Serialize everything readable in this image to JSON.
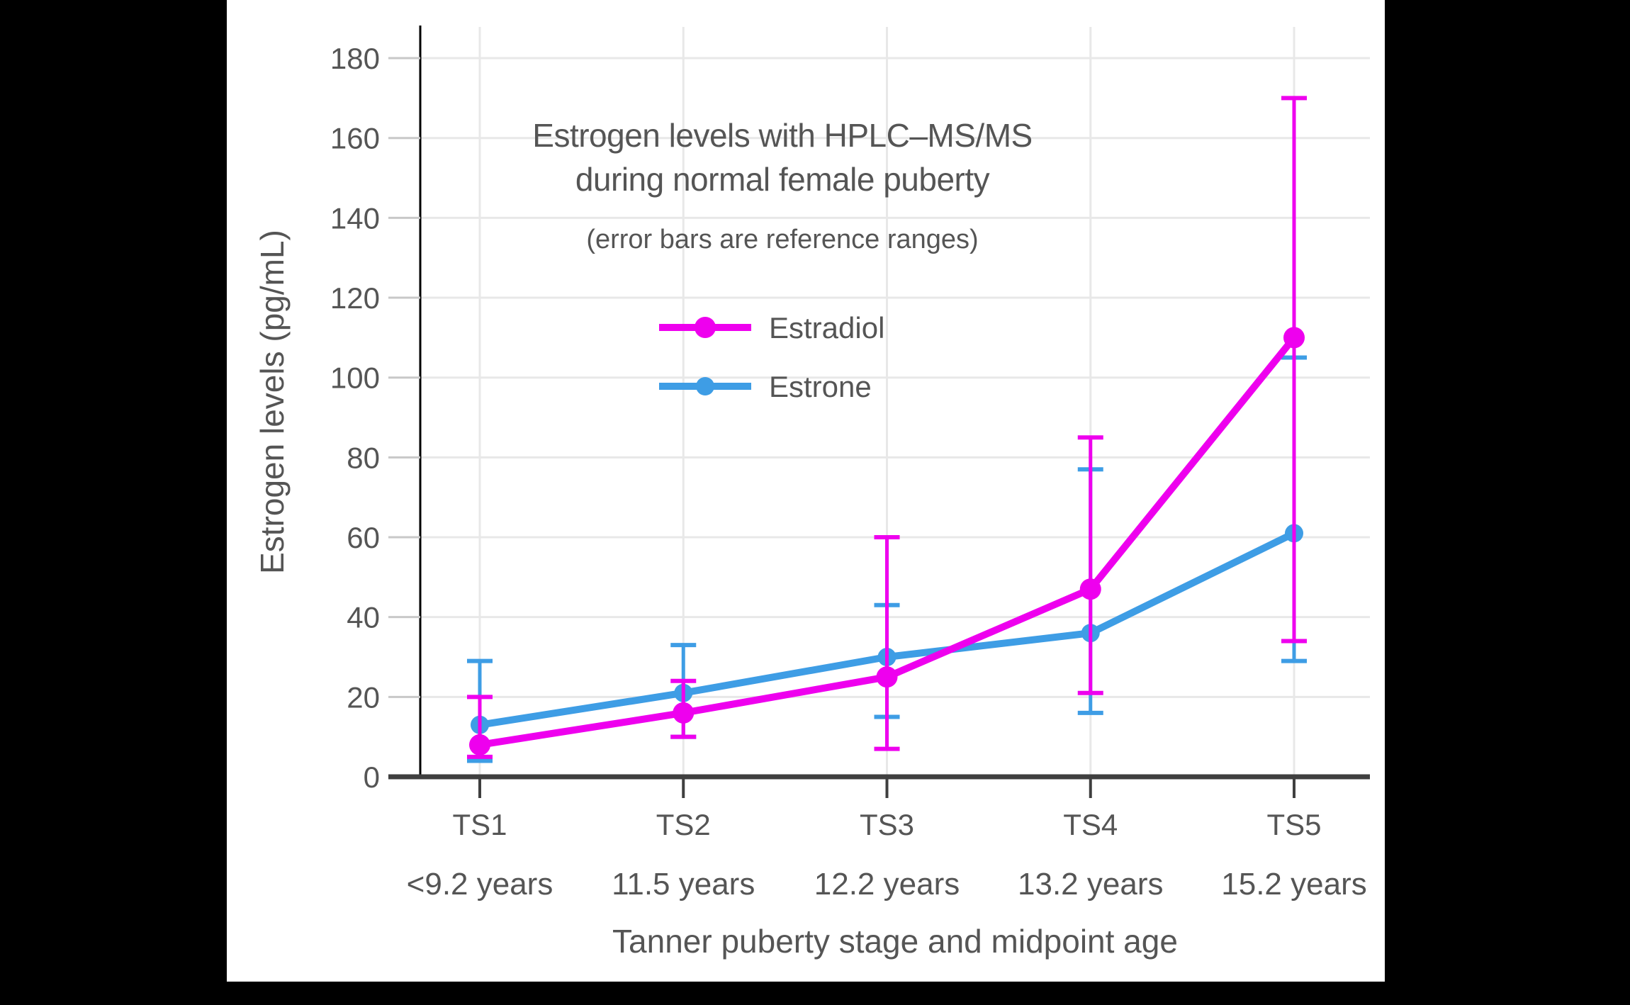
{
  "colors": {
    "letterbox": "#000000",
    "panel": "#ffffff",
    "text": "#555555",
    "gridline": "#e8e8e8",
    "y_axis_line": "#000000",
    "x_axis_line": "#3f3f3f",
    "y_tick": "#c8c8c8",
    "estradiol": "#EE00EE",
    "estrone": "#3E9DE5"
  },
  "chart_data": {
    "type": "line",
    "title": "Estrogen levels with HPLC–MS/MS",
    "title_line2": "during normal female puberty",
    "subtitle": "(error bars are reference ranges)",
    "xlabel": "Tanner puberty stage and midpoint age",
    "ylabel": "Estrogen levels (pg/mL)",
    "categories": [
      "TS1",
      "TS2",
      "TS3",
      "TS4",
      "TS5"
    ],
    "category_ages": [
      "<9.2 years",
      "11.5 years",
      "12.2 years",
      "13.2 years",
      "15.2 years"
    ],
    "yticks": [
      0,
      20,
      40,
      60,
      80,
      100,
      120,
      140,
      160,
      180
    ],
    "ylim": [
      0,
      188
    ],
    "grid": true,
    "legend_position": "upper-center-inside",
    "error_bars": "reference ranges",
    "series": [
      {
        "name": "Estrone",
        "color": "#3E9DE5",
        "values": [
          13,
          21,
          30,
          36,
          61
        ],
        "error_low": [
          4,
          10,
          15,
          16,
          29
        ],
        "error_high": [
          29,
          33,
          43,
          77,
          105
        ]
      },
      {
        "name": "Estradiol",
        "color": "#EE00EE",
        "values": [
          8,
          16,
          25,
          47,
          110
        ],
        "error_low": [
          5,
          10,
          7,
          21,
          34
        ],
        "error_high": [
          20,
          24,
          60,
          85,
          170
        ]
      }
    ]
  },
  "legend": {
    "items": [
      {
        "label": "Estradiol",
        "series": "Estradiol"
      },
      {
        "label": "Estrone",
        "series": "Estrone"
      }
    ]
  }
}
